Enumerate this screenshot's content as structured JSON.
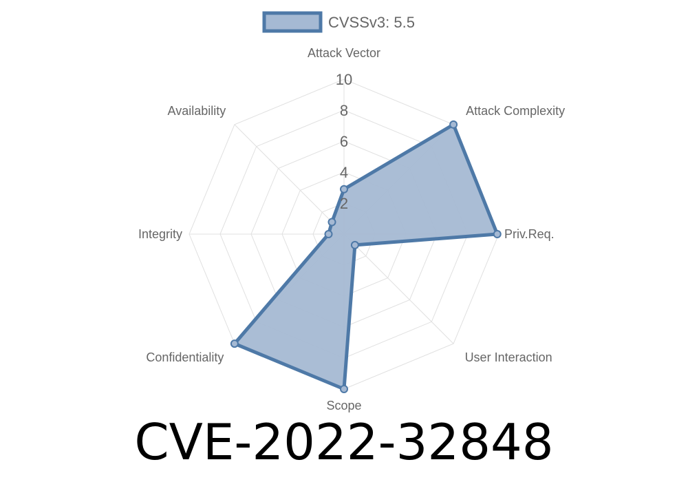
{
  "chart_data": {
    "type": "radar",
    "legend": {
      "label": "CVSSv3: 5.5",
      "position": "top"
    },
    "axes": [
      "Attack Vector",
      "Attack Complexity",
      "Priv.Req.",
      "User Interaction",
      "Scope",
      "Confidentiality",
      "Integrity",
      "Availability"
    ],
    "rlim": [
      0,
      10
    ],
    "ticks": [
      "2",
      "4",
      "6",
      "8",
      "10"
    ],
    "grid": true,
    "series": [
      {
        "name": "CVSSv3: 5.5",
        "values": [
          2.9,
          10,
          9.9,
          1.0,
          10,
          10,
          1.0,
          1.1
        ]
      }
    ],
    "colors": {
      "line": "#4e79a7",
      "fill": "#a5b9d3",
      "grid": "#e0e0e0",
      "label": "#666666"
    }
  },
  "title": "CVE-2022-32848"
}
